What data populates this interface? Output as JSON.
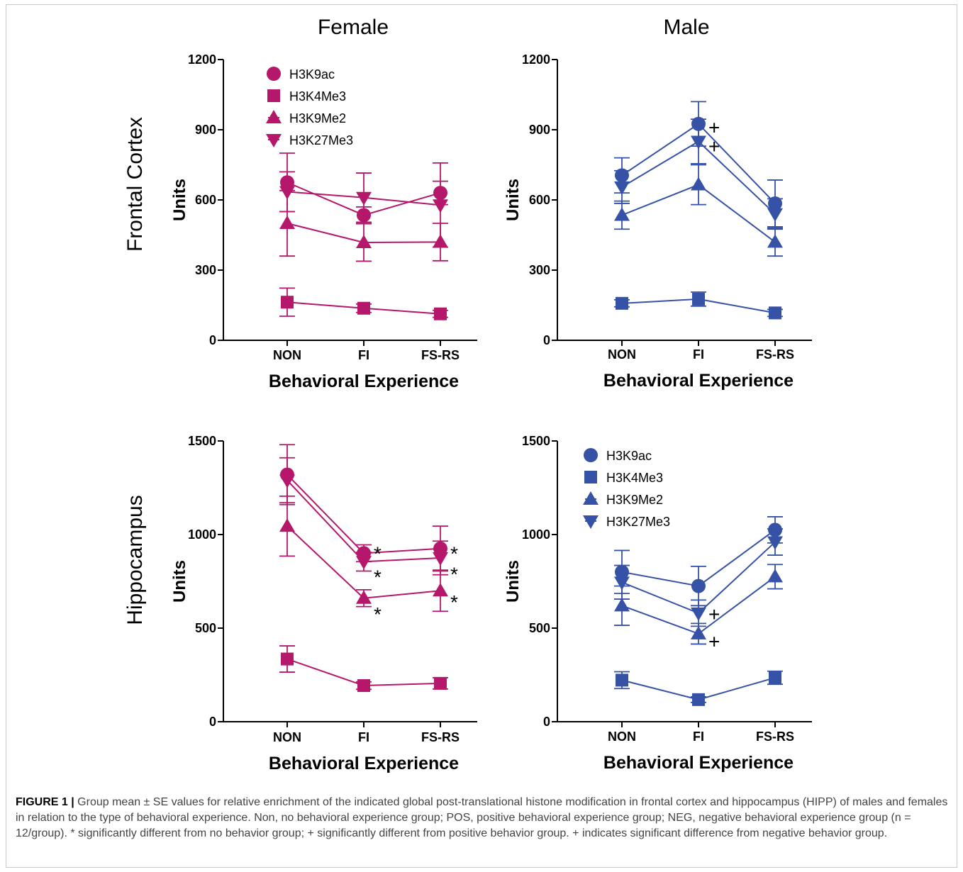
{
  "caption": {
    "label": "FIGURE 1 |",
    "text": "Group mean ± SE values for relative enrichment of the indicated global post-translational histone modification in frontal cortex and hippocampus (HIPP) of males and females in relation to the type of behavioral experience. Non, no behavioral experience group; POS, positive behavioral experience group; NEG, negative behavioral experience group (n = 12/group). * significantly different from no behavior group; + significantly different from positive behavior group. + indicates significant difference from negative behavior group."
  },
  "column_titles": [
    "Female",
    "Male"
  ],
  "row_titles": [
    "Frontal Cortex",
    "Hippocampus"
  ],
  "colors": {
    "female": "#b5176b",
    "male": "#3652a6"
  },
  "legend_labels": [
    "H3K9ac",
    "H3K4Me3",
    "H3K9Me2",
    "H3K27Me3"
  ],
  "chart_data": [
    {
      "type": "line",
      "panel": "Female - Frontal Cortex",
      "categories": [
        "NON",
        "FI",
        "FS-RS"
      ],
      "xlabel": "Behavioral Experience",
      "ylabel": "Units",
      "ylim": [
        0,
        1200
      ],
      "yticks": [
        0,
        300,
        600,
        900,
        1200
      ],
      "color": "#b5176b",
      "legend": "top-left",
      "series": [
        {
          "name": "H3K9ac",
          "marker": "circle",
          "values": [
            675,
            535,
            630
          ],
          "err": [
            125,
            35,
            50
          ]
        },
        {
          "name": "H3K4Me3",
          "marker": "square",
          "values": [
            163,
            137,
            113
          ],
          "err": [
            60,
            18,
            15
          ]
        },
        {
          "name": "H3K9Me2",
          "marker": "triangle-up",
          "values": [
            500,
            418,
            420
          ],
          "err": [
            140,
            80,
            80
          ]
        },
        {
          "name": "H3K27Me3",
          "marker": "triangle-down",
          "values": [
            635,
            610,
            578
          ],
          "err": [
            85,
            105,
            180
          ]
        }
      ],
      "annotations": []
    },
    {
      "type": "line",
      "panel": "Male - Frontal Cortex",
      "categories": [
        "NON",
        "FI",
        "FS-RS"
      ],
      "xlabel": "Behavioral Experience",
      "ylabel": "Units",
      "ylim": [
        0,
        1200
      ],
      "yticks": [
        0,
        300,
        600,
        900,
        1200
      ],
      "color": "#3652a6",
      "series": [
        {
          "name": "H3K9ac",
          "marker": "circle",
          "values": [
            705,
            925,
            585
          ],
          "err": [
            75,
            95,
            100
          ]
        },
        {
          "name": "H3K4Me3",
          "marker": "square",
          "values": [
            158,
            176,
            117
          ],
          "err": [
            15,
            30,
            15
          ]
        },
        {
          "name": "H3K9Me2",
          "marker": "triangle-up",
          "values": [
            535,
            665,
            420
          ],
          "err": [
            60,
            85,
            60
          ]
        },
        {
          "name": "H3K27Me3",
          "marker": "triangle-down",
          "values": [
            655,
            850,
            540
          ],
          "err": [
            70,
            95,
            65
          ]
        }
      ],
      "annotations": [
        {
          "text": "+",
          "category": "FI",
          "value": 910
        },
        {
          "text": "+",
          "category": "FI",
          "value": 830
        }
      ]
    },
    {
      "type": "line",
      "panel": "Female - Hippocampus",
      "categories": [
        "NON",
        "FI",
        "FS-RS"
      ],
      "xlabel": "Behavioral Experience",
      "ylabel": "Units",
      "ylim": [
        0,
        1500
      ],
      "yticks": [
        0,
        500,
        1000,
        1500
      ],
      "color": "#b5176b",
      "series": [
        {
          "name": "H3K9ac",
          "marker": "circle",
          "values": [
            1320,
            900,
            925
          ],
          "err": [
            160,
            45,
            120
          ]
        },
        {
          "name": "H3K4Me3",
          "marker": "square",
          "values": [
            335,
            193,
            205
          ],
          "err": [
            70,
            20,
            30
          ]
        },
        {
          "name": "H3K9Me2",
          "marker": "triangle-up",
          "values": [
            1045,
            660,
            700
          ],
          "err": [
            160,
            45,
            110
          ]
        },
        {
          "name": "H3K27Me3",
          "marker": "triangle-down",
          "values": [
            1290,
            855,
            875
          ],
          "err": [
            120,
            50,
            90
          ]
        }
      ],
      "annotations": [
        {
          "text": "*",
          "category": "FI",
          "value": 900
        },
        {
          "text": "*",
          "category": "FI",
          "value": 775
        },
        {
          "text": "*",
          "category": "FI",
          "value": 575
        },
        {
          "text": "*",
          "category": "FS-RS",
          "value": 900
        },
        {
          "text": "*",
          "category": "FS-RS",
          "value": 790
        },
        {
          "text": "*",
          "category": "FS-RS",
          "value": 640
        }
      ]
    },
    {
      "type": "line",
      "panel": "Male - Hippocampus",
      "categories": [
        "NON",
        "FI",
        "FS-RS"
      ],
      "xlabel": "Behavioral Experience",
      "ylabel": "Units",
      "ylim": [
        0,
        1500
      ],
      "yticks": [
        0,
        500,
        1000,
        1500
      ],
      "color": "#3652a6",
      "legend": "top-left",
      "series": [
        {
          "name": "H3K9ac",
          "marker": "circle",
          "values": [
            800,
            725,
            1025
          ],
          "err": [
            115,
            105,
            70
          ]
        },
        {
          "name": "H3K4Me3",
          "marker": "square",
          "values": [
            222,
            118,
            235
          ],
          "err": [
            45,
            15,
            35
          ]
        },
        {
          "name": "H3K9Me2",
          "marker": "triangle-up",
          "values": [
            620,
            470,
            775
          ],
          "err": [
            105,
            55,
            65
          ]
        },
        {
          "name": "H3K27Me3",
          "marker": "triangle-down",
          "values": [
            745,
            580,
            960
          ],
          "err": [
            90,
            70,
            70
          ]
        }
      ],
      "annotations": [
        {
          "text": "+",
          "category": "FI",
          "value": 575
        },
        {
          "text": "+",
          "category": "FI",
          "value": 430
        }
      ]
    }
  ]
}
